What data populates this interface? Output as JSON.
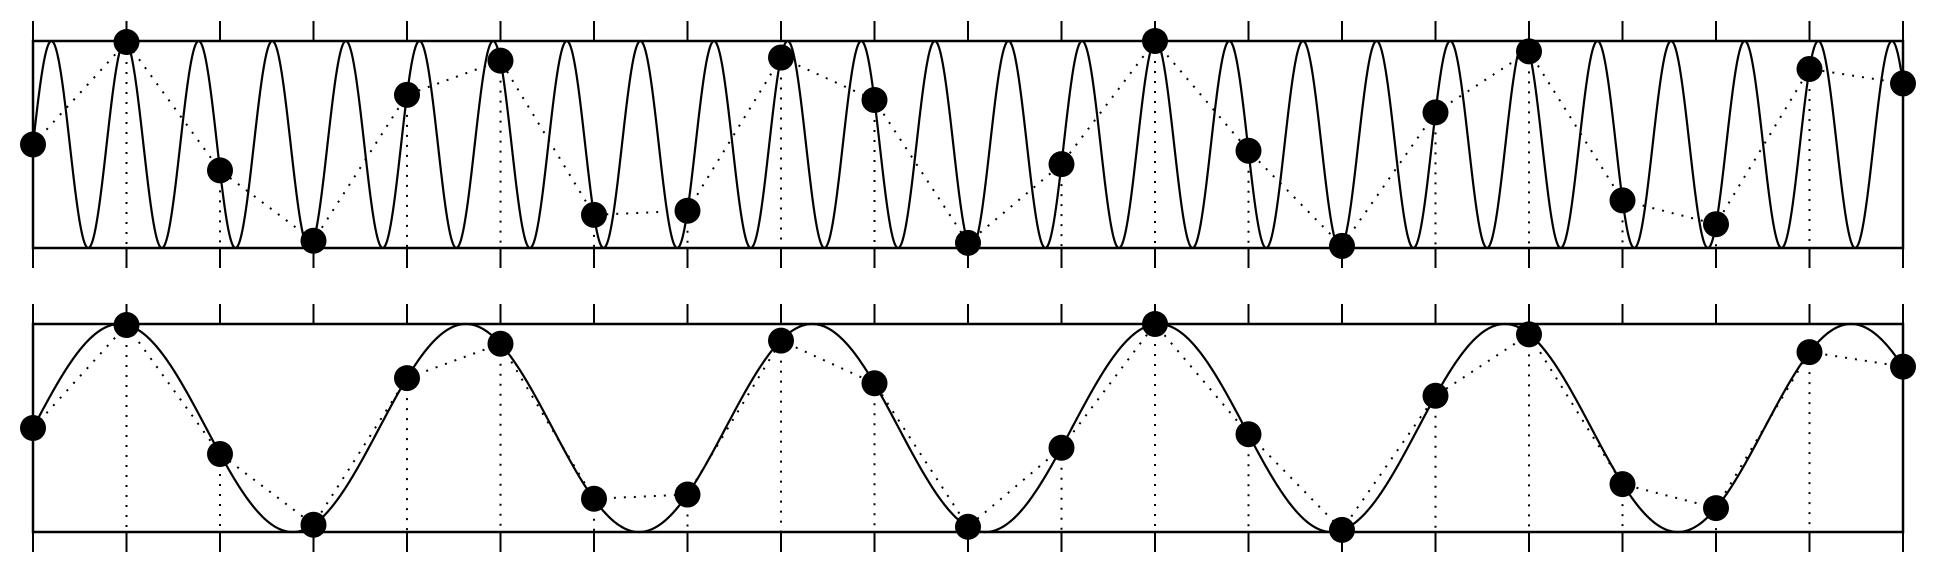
{
  "chart_data": [
    {
      "type": "line",
      "wave_cycles_per_sample": 1.27,
      "x": [
        0,
        1,
        2,
        3,
        4,
        5,
        6,
        7,
        8,
        9,
        10,
        11,
        12,
        13,
        14,
        15,
        16,
        17,
        18,
        19,
        20
      ],
      "values": [
        0,
        0.99,
        -0.25,
        -0.93,
        0.48,
        0.81,
        -0.68,
        -0.64,
        0.84,
        0.43,
        -0.95,
        -0.19,
        1.0,
        -0.06,
        -0.98,
        0.31,
        0.9,
        -0.54,
        -0.77,
        0.73,
        0.59
      ],
      "xlim": [
        0,
        20
      ],
      "ylim": [
        -1,
        1
      ],
      "xticks": [
        0,
        1,
        2,
        3,
        4,
        5,
        6,
        7,
        8,
        9,
        10,
        11,
        12,
        13,
        14,
        15,
        16,
        17,
        18,
        19,
        20
      ],
      "color": "#000000"
    },
    {
      "type": "line",
      "wave_cycles_per_sample": 0.27,
      "x": [
        0,
        1,
        2,
        3,
        4,
        5,
        6,
        7,
        8,
        9,
        10,
        11,
        12,
        13,
        14,
        15,
        16,
        17,
        18,
        19,
        20
      ],
      "values": [
        0,
        0.99,
        -0.25,
        -0.93,
        0.48,
        0.81,
        -0.68,
        -0.64,
        0.84,
        0.43,
        -0.95,
        -0.19,
        1.0,
        -0.06,
        -0.98,
        0.31,
        0.9,
        -0.54,
        -0.77,
        0.73,
        0.59
      ],
      "xlim": [
        0,
        20
      ],
      "ylim": [
        -1,
        1
      ],
      "xticks": [
        0,
        1,
        2,
        3,
        4,
        5,
        6,
        7,
        8,
        9,
        10,
        11,
        12,
        13,
        14,
        15,
        16,
        17,
        18,
        19,
        20
      ],
      "color": "#000000"
    }
  ]
}
